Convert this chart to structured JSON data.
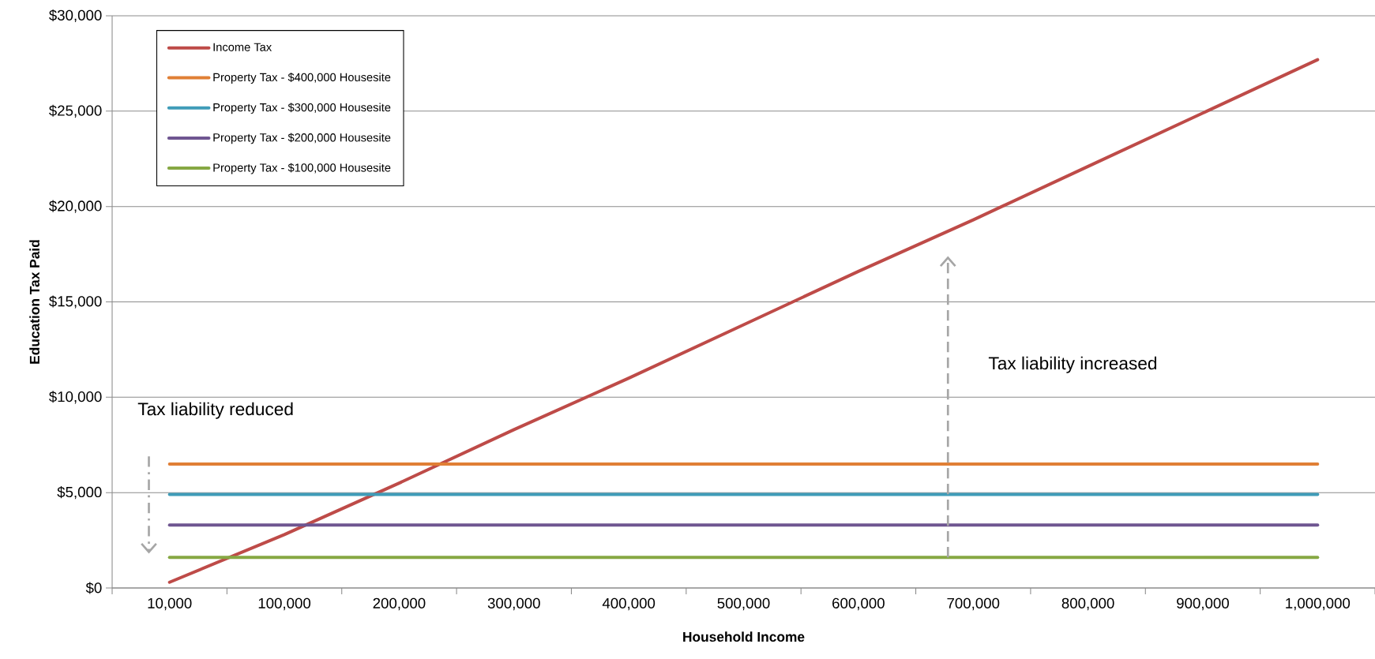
{
  "chart_data": {
    "type": "line",
    "xlabel": "Household Income",
    "ylabel": "Education Tax Paid",
    "categories": [
      "10,000",
      "100,000",
      "200,000",
      "300,000",
      "400,000",
      "500,000",
      "600,000",
      "700,000",
      "800,000",
      "900,000",
      "1,000,000"
    ],
    "series": [
      {
        "name": "Income Tax",
        "color": "#be4b48",
        "values": [
          300,
          2800,
          5500,
          8300,
          11000,
          13800,
          16600,
          19300,
          22100,
          24900,
          27700
        ]
      },
      {
        "name": "Property Tax - $400,000 Housesite",
        "color": "#e07f35",
        "values": [
          6500,
          6500,
          6500,
          6500,
          6500,
          6500,
          6500,
          6500,
          6500,
          6500,
          6500
        ]
      },
      {
        "name": "Property Tax - $300,000 Housesite",
        "color": "#3f9cb8",
        "values": [
          4900,
          4900,
          4900,
          4900,
          4900,
          4900,
          4900,
          4900,
          4900,
          4900,
          4900
        ]
      },
      {
        "name": "Property Tax - $200,000 Housesite",
        "color": "#6f5691",
        "values": [
          3300,
          3300,
          3300,
          3300,
          3300,
          3300,
          3300,
          3300,
          3300,
          3300,
          3300
        ]
      },
      {
        "name": "Property Tax - $100,000 Housesite",
        "color": "#86a843",
        "values": [
          1600,
          1600,
          1600,
          1600,
          1600,
          1600,
          1600,
          1600,
          1600,
          1600,
          1600
        ]
      }
    ],
    "ylim": [
      0,
      30000
    ],
    "yticks": [
      {
        "value": 0,
        "label": "$0"
      },
      {
        "value": 5000,
        "label": "$5,000"
      },
      {
        "value": 10000,
        "label": "$10,000"
      },
      {
        "value": 15000,
        "label": "$15,000"
      },
      {
        "value": 20000,
        "label": "$20,000"
      },
      {
        "value": 25000,
        "label": "$25,000"
      },
      {
        "value": 30000,
        "label": "$30,000"
      }
    ],
    "grid": "y",
    "legend": "top left",
    "marker": "none",
    "line_style": "solid",
    "annotations": [
      "Tax liability reduced",
      "Tax liability increased"
    ]
  }
}
